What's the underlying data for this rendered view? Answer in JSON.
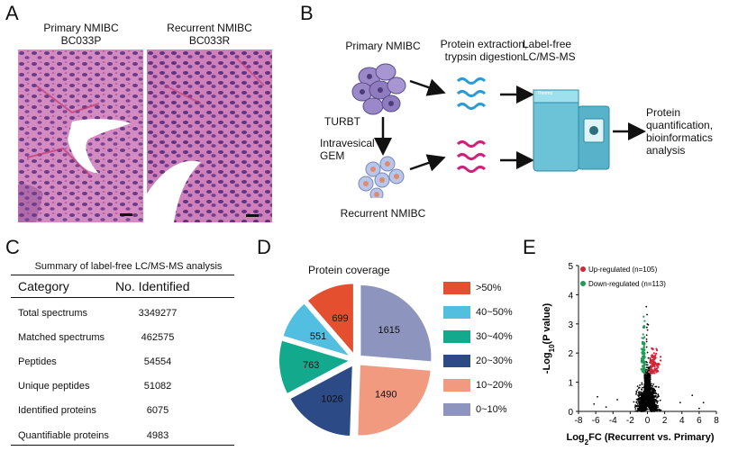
{
  "panels": {
    "A": "A",
    "B": "B",
    "C": "C",
    "D": "D",
    "E": "E"
  },
  "panelA": {
    "left_title_1": "Primary NMIBC",
    "left_title_2": "BC033P",
    "right_title_1": "Recurrent NMIBC",
    "right_title_2": "BC033R"
  },
  "panelB": {
    "primary": "Primary NMIBC",
    "extraction_1": "Protein extraction,",
    "extraction_2": "trypsin digestion",
    "labelfree_1": "Label-free",
    "labelfree_2": "LC/MS-MS",
    "turbt": "TURBT",
    "intravesical_1": "Intravesical",
    "intravesical_2": "GEM",
    "recurrent": "Recurrent NMIBC",
    "quant_1": "Protein",
    "quant_2": "quantification,",
    "quant_3": "bioinformatics",
    "quant_4": "analysis",
    "instrument_label": "Thermo"
  },
  "panelC": {
    "title": "Summary of label-free LC/MS-MS analysis",
    "col_category": "Category",
    "col_identified": "No. Identified",
    "rows": [
      {
        "category": "Total spectrums",
        "value": "3349277"
      },
      {
        "category": "Matched spectrums",
        "value": "462575"
      },
      {
        "category": "Peptides",
        "value": "54554"
      },
      {
        "category": "Unique peptides",
        "value": "51082"
      },
      {
        "category": "Identified proteins",
        "value": "6075"
      },
      {
        "category": "Quantifiable proteins",
        "value": "4983"
      }
    ]
  },
  "chart_data": [
    {
      "type": "pie",
      "title": "Protein coverage",
      "categories": [
        ">50%",
        "40~50%",
        "30~40%",
        "20~30%",
        "10~20%",
        "0~10%"
      ],
      "values": [
        699,
        551,
        763,
        1026,
        1490,
        1615
      ],
      "colors": [
        "#e4502f",
        "#52bfe0",
        "#13a98d",
        "#2b4a86",
        "#f29a80",
        "#8d95bf"
      ]
    },
    {
      "type": "scatter",
      "xlabel": "Log2FC (Recurrent vs. Primary)",
      "ylabel": "-Log10(P value)",
      "xlim": [
        -8,
        8
      ],
      "ylim": [
        0,
        5
      ],
      "xticks": [
        -8,
        -6,
        -4,
        -2,
        0,
        2,
        4,
        6,
        8
      ],
      "yticks": [
        0,
        1,
        2,
        3,
        4,
        5
      ],
      "legend": [
        {
          "label": "Up-regulated (n=105)",
          "color": "#d1263a",
          "count": 105
        },
        {
          "label": "Down-regulated (n=113)",
          "color": "#1e9c55",
          "count": 113
        }
      ],
      "not_significant_color": "#000000"
    }
  ],
  "axis_text": {
    "ylabel_a": "-Log",
    "ylabel_sub": "10",
    "ylabel_b": "(P value)",
    "xlabel_a": "Log",
    "xlabel_sub": "2",
    "xlabel_b": "FC (Recurrent vs. Primary)"
  }
}
